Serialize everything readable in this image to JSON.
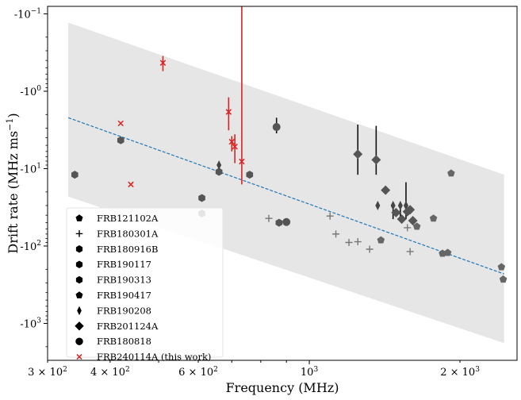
{
  "chart_data": {
    "type": "scatter",
    "xlabel": "Frequency (MHz)",
    "ylabel_main": "Drift rate  (MHz ms",
    "ylabel_sup": "−1",
    "ylabel_end": ")",
    "xscale": "log",
    "yscale": "symlog-negative",
    "xlim": [
      300,
      2600
    ],
    "ylim": [
      -0.08,
      -3000
    ],
    "legend_position": "lower-left",
    "x_ticks": [
      {
        "value": 300,
        "base": "3 × 10",
        "exp": "2"
      },
      {
        "value": 400,
        "base": "4 × 10",
        "exp": "2"
      },
      {
        "value": 600,
        "base": "6 × 10",
        "exp": "2"
      },
      {
        "value": 1000,
        "base": "10",
        "exp": "3"
      },
      {
        "value": 2000,
        "base": "2 × 10",
        "exp": "3"
      }
    ],
    "y_ticks": [
      {
        "value": -0.1,
        "base": "-10",
        "exp": "−1"
      },
      {
        "value": -1,
        "base": "-10",
        "exp": "0"
      },
      {
        "value": -10,
        "base": "-10",
        "exp": "1"
      },
      {
        "value": -100,
        "base": "-10",
        "exp": "2"
      },
      {
        "value": -1000,
        "base": "-10",
        "exp": "3"
      }
    ],
    "band": {
      "x": [
        330,
        2450
      ],
      "upper": [
        -0.13,
        -12
      ],
      "lower": [
        -23,
        -1800
      ],
      "color": "#e6e6e6"
    },
    "fit_line": {
      "x": [
        330,
        2450
      ],
      "y": [
        -2.2,
        -230
      ],
      "color": "#1f77b4"
    },
    "series": [
      {
        "name": "FRB121102A",
        "marker": "pentagon",
        "color": "#666666",
        "points": [
          [
            1640,
            -56
          ],
          [
            1770,
            -44
          ],
          [
            1845,
            -125
          ],
          [
            1890,
            -122
          ],
          [
            1920,
            -11.5
          ],
          [
            2420,
            -187
          ],
          [
            2440,
            -270
          ]
        ]
      },
      {
        "name": "FRB180301A",
        "marker": "plus",
        "color": "#777777",
        "points": [
          [
            830,
            -44
          ],
          [
            1100,
            -41
          ],
          [
            1130,
            -70
          ],
          [
            1200,
            -90
          ],
          [
            1250,
            -88
          ],
          [
            1320,
            -110
          ],
          [
            1570,
            -58
          ],
          [
            1590,
            -118
          ]
        ]
      },
      {
        "name": "FRB180916B",
        "marker": "hexagon",
        "color": "#555555",
        "points": [
          [
            610,
            -24
          ],
          [
            660,
            -11
          ],
          [
            760,
            -12
          ],
          [
            870,
            -50
          ]
        ]
      },
      {
        "name": "FRB190117",
        "marker": "hexagon",
        "color": "#555555",
        "points": [
          [
            340,
            -12
          ]
        ]
      },
      {
        "name": "FRB190313",
        "marker": "hexagon",
        "color": "#555555",
        "points": [
          [
            420,
            -4.3
          ],
          [
            610,
            -38
          ]
        ]
      },
      {
        "name": "FRB190417",
        "marker": "pentagon",
        "color": "#666666",
        "points": [
          [
            1390,
            -84
          ]
        ]
      },
      {
        "name": "FRB190208",
        "marker": "thin-diamond",
        "color": "#444444",
        "points": [
          [
            660,
            -9
          ],
          [
            1370,
            -30
          ],
          [
            1470,
            -30
          ],
          [
            1520,
            -30
          ],
          [
            1560,
            -30
          ]
        ]
      },
      {
        "name": "FRB201124A",
        "marker": "diamond",
        "color": "#555555",
        "points": [
          [
            1250,
            -6.5
          ],
          [
            1360,
            -7.7
          ],
          [
            1420,
            -19
          ],
          [
            1490,
            -37
          ],
          [
            1530,
            -45
          ],
          [
            1570,
            -36
          ],
          [
            1590,
            -34
          ],
          [
            1610,
            -47
          ]
        ]
      },
      {
        "name": "FRB180818",
        "marker": "circle",
        "color": "#555555",
        "points": [
          [
            860,
            -2.9
          ],
          [
            900,
            -49
          ]
        ]
      },
      {
        "name": "FRB240114A (this work)",
        "marker": "x",
        "color": "#dd2222",
        "points": [
          [
            510,
            -0.43
          ],
          [
            420,
            -2.6
          ],
          [
            690,
            -1.85
          ],
          [
            700,
            -4.5
          ],
          [
            710,
            -5.2
          ],
          [
            733,
            -8.1
          ],
          [
            440,
            -16
          ]
        ]
      }
    ],
    "error_bars": [
      {
        "x": 510,
        "y1": -0.35,
        "y2": -0.55,
        "color": "#dd2222"
      },
      {
        "x": 690,
        "y1": -1.2,
        "y2": -3.2,
        "color": "#dd2222"
      },
      {
        "x": 700,
        "y1": -3.8,
        "y2": -6.0,
        "color": "#dd2222"
      },
      {
        "x": 710,
        "y1": -3.6,
        "y2": -8.5,
        "color": "#dd2222"
      },
      {
        "x": 733,
        "y1": -0.08,
        "y2": -16,
        "color": "#dd2222"
      },
      {
        "x": 860,
        "y1": -2.2,
        "y2": -3.5,
        "color": "#111111"
      },
      {
        "x": 1250,
        "y1": -2.7,
        "y2": -12,
        "color": "#111111"
      },
      {
        "x": 1360,
        "y1": -2.8,
        "y2": -12,
        "color": "#111111"
      },
      {
        "x": 1470,
        "y1": -27,
        "y2": -45,
        "color": "#111111"
      },
      {
        "x": 1520,
        "y1": -27,
        "y2": -45,
        "color": "#111111"
      },
      {
        "x": 1560,
        "y1": -15,
        "y2": -45,
        "color": "#111111"
      }
    ]
  }
}
